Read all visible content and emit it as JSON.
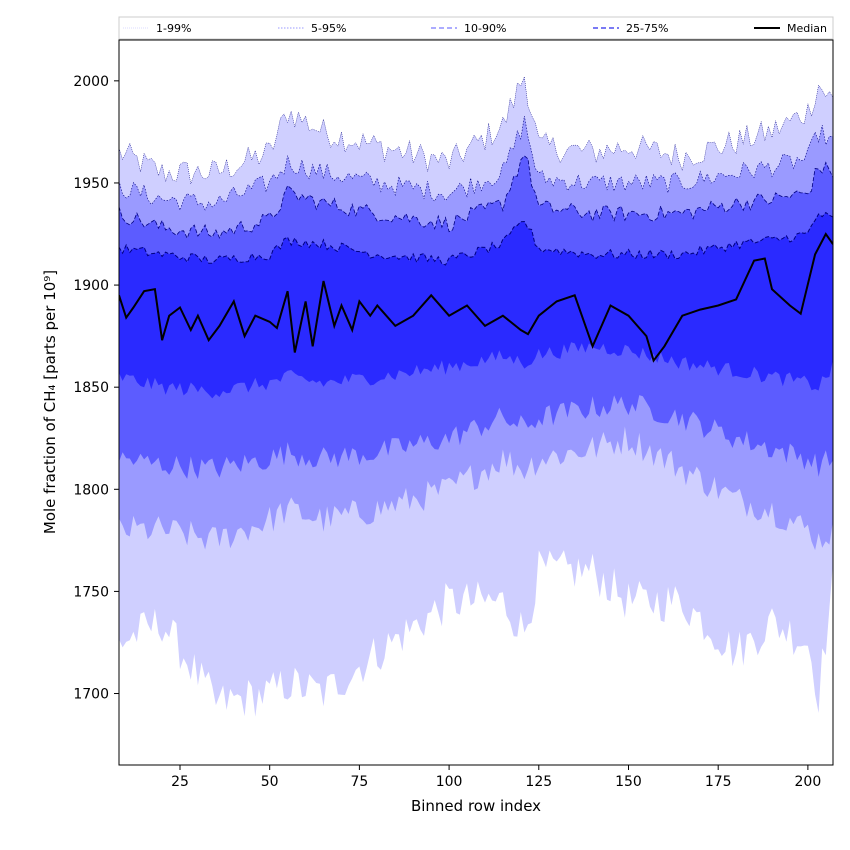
{
  "chart_data": {
    "type": "area",
    "title": "",
    "xlabel": "Binned row index",
    "ylabel": "Mole fraction of CH₄ [parts per 10⁹]",
    "xlim": [
      8,
      207
    ],
    "ylim": [
      1665,
      2020
    ],
    "xticks": [
      25,
      50,
      75,
      100,
      125,
      150,
      175,
      200
    ],
    "yticks": [
      1700,
      1750,
      1800,
      1850,
      1900,
      1950,
      2000
    ],
    "grid": false,
    "legend_position": "top",
    "x_nodes": [
      8,
      20,
      35,
      50,
      55,
      65,
      80,
      100,
      115,
      121,
      125,
      140,
      150,
      165,
      180,
      190,
      200,
      203,
      207
    ],
    "bands": [
      {
        "name": "1-99%",
        "lower": [
          1725,
          1735,
          1695,
          1700,
          1705,
          1700,
          1720,
          1745,
          1745,
          1730,
          1760,
          1760,
          1745,
          1745,
          1720,
          1735,
          1725,
          1700,
          1755
        ],
        "upper": [
          1965,
          1955,
          1955,
          1965,
          1985,
          1975,
          1968,
          1960,
          1978,
          2003,
          1968,
          1965,
          1968,
          1963,
          1970,
          1975,
          1985,
          1998,
          1990
        ],
        "color": "#cfcfff"
      },
      {
        "name": "5-95%",
        "lower": [
          1780,
          1780,
          1775,
          1785,
          1790,
          1785,
          1790,
          1800,
          1815,
          1810,
          1815,
          1820,
          1825,
          1810,
          1795,
          1790,
          1780,
          1775,
          1780
        ],
        "upper": [
          1948,
          1942,
          1940,
          1950,
          1960,
          1955,
          1950,
          1945,
          1955,
          1980,
          1952,
          1950,
          1950,
          1950,
          1955,
          1958,
          1962,
          1975,
          1970
        ],
        "color": "#9a9aff"
      },
      {
        "name": "10-90%",
        "lower": [
          1815,
          1812,
          1810,
          1815,
          1818,
          1815,
          1818,
          1825,
          1835,
          1830,
          1835,
          1840,
          1842,
          1835,
          1825,
          1820,
          1815,
          1812,
          1815
        ],
        "upper": [
          1935,
          1928,
          1925,
          1932,
          1945,
          1940,
          1935,
          1930,
          1940,
          1965,
          1938,
          1935,
          1935,
          1935,
          1940,
          1942,
          1945,
          1958,
          1955
        ],
        "color": "#5c5cff"
      },
      {
        "name": "25-75%",
        "lower": [
          1855,
          1850,
          1848,
          1852,
          1855,
          1852,
          1855,
          1860,
          1865,
          1862,
          1866,
          1870,
          1868,
          1862,
          1858,
          1855,
          1852,
          1850,
          1860
        ],
        "upper": [
          1918,
          1915,
          1912,
          1915,
          1922,
          1920,
          1915,
          1912,
          1920,
          1932,
          1918,
          1915,
          1915,
          1915,
          1920,
          1922,
          1925,
          1935,
          1932
        ],
        "color": "#2a2aff"
      }
    ],
    "median": {
      "name": "Median",
      "x": [
        8,
        10,
        12,
        15,
        18,
        20,
        22,
        25,
        28,
        30,
        33,
        36,
        40,
        43,
        46,
        50,
        52,
        55,
        57,
        60,
        62,
        65,
        68,
        70,
        73,
        75,
        78,
        80,
        85,
        90,
        95,
        100,
        105,
        110,
        115,
        120,
        122,
        125,
        130,
        135,
        140,
        145,
        150,
        155,
        157,
        160,
        165,
        170,
        175,
        180,
        185,
        188,
        190,
        195,
        198,
        202,
        205,
        207
      ],
      "y": [
        1895,
        1884,
        1889,
        1897,
        1898,
        1873,
        1885,
        1889,
        1878,
        1885,
        1873,
        1880,
        1892,
        1875,
        1885,
        1882,
        1879,
        1897,
        1867,
        1892,
        1870,
        1902,
        1880,
        1890,
        1878,
        1892,
        1885,
        1890,
        1880,
        1885,
        1895,
        1885,
        1890,
        1880,
        1885,
        1878,
        1876,
        1885,
        1892,
        1895,
        1870,
        1890,
        1885,
        1875,
        1863,
        1870,
        1885,
        1888,
        1890,
        1893,
        1912,
        1913,
        1898,
        1890,
        1886,
        1915,
        1925,
        1920
      ],
      "color": "#000000"
    },
    "legend": [
      {
        "label": "1-99%",
        "color": "#d0d0ff",
        "dash": "1,1",
        "width": 0.8
      },
      {
        "label": "5-95%",
        "color": "#7a7aff",
        "dash": "1.5,1.5",
        "width": 0.8
      },
      {
        "label": "10-90%",
        "color": "#5a5aff",
        "dash": "5,3",
        "width": 1
      },
      {
        "label": "25-75%",
        "color": "#2a2aee",
        "dash": "5,3",
        "width": 1.2
      },
      {
        "label": "Median",
        "color": "#000000",
        "dash": "",
        "width": 2
      }
    ]
  }
}
